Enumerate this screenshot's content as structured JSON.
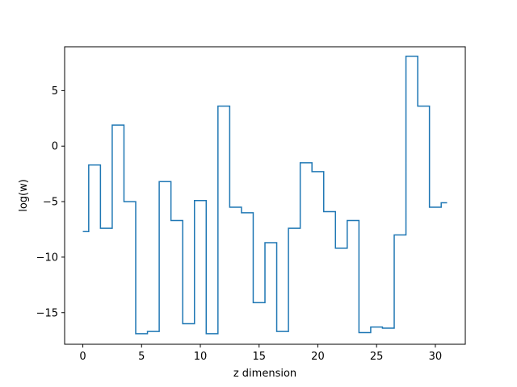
{
  "chart_data": {
    "type": "line",
    "drawstyle": "steps-mid",
    "xlabel": "z dimension",
    "ylabel": "log(w)",
    "xlim": [
      -1.55,
      32.55
    ],
    "ylim": [
      -17.85,
      8.95
    ],
    "xticks": [
      0,
      5,
      10,
      15,
      20,
      25,
      30
    ],
    "yticks": [
      -15,
      -10,
      -5,
      0,
      5
    ],
    "grid": false,
    "series": [
      {
        "color": "#1f77b4",
        "x": [
          0,
          1,
          2,
          3,
          4,
          5,
          6,
          7,
          8,
          9,
          10,
          11,
          12,
          13,
          14,
          15,
          16,
          17,
          18,
          19,
          20,
          21,
          22,
          23,
          24,
          25,
          26,
          27,
          28,
          29,
          30,
          31
        ],
        "values": [
          -7.7,
          -1.7,
          -7.4,
          1.9,
          -5.0,
          -16.9,
          -16.7,
          -3.2,
          -6.7,
          -16.0,
          -4.9,
          -16.9,
          3.6,
          -5.5,
          -6.0,
          -14.1,
          -8.7,
          -16.7,
          -7.4,
          -1.5,
          -2.3,
          -5.9,
          -9.2,
          -6.7,
          -16.8,
          -16.3,
          -16.4,
          -8.0,
          8.1,
          3.6,
          -5.5,
          -5.1
        ]
      }
    ]
  }
}
